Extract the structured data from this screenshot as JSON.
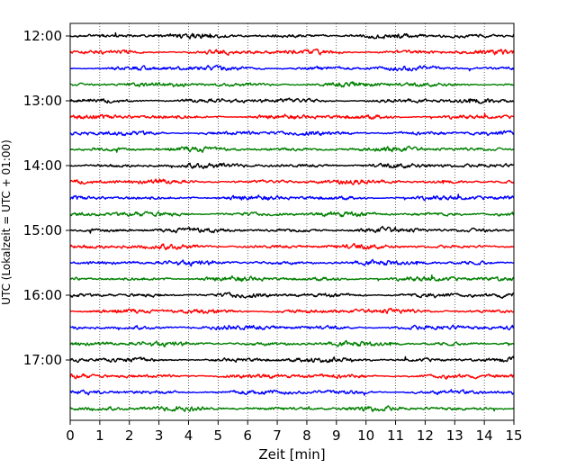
{
  "chart_data": {
    "type": "line",
    "title": "",
    "xlabel": "Zeit  [min]",
    "ylabel": "UTC (Lokalzeit = UTC + 01:00)",
    "xlim": [
      0,
      15
    ],
    "x_ticks": [
      "0",
      "1",
      "2",
      "3",
      "4",
      "5",
      "6",
      "7",
      "8",
      "9",
      "10",
      "11",
      "12",
      "13",
      "14",
      "15"
    ],
    "y_ticks": [
      "12:00",
      "13:00",
      "14:00",
      "15:00",
      "16:00",
      "17:00"
    ],
    "trace_start": "12:00",
    "trace_interval_min": 15,
    "trace_count": 24,
    "trace_colors": [
      "#000000",
      "#ff0000",
      "#0000ff",
      "#008000"
    ],
    "grid": {
      "x": true,
      "style": "dotted"
    },
    "legend": "none"
  }
}
